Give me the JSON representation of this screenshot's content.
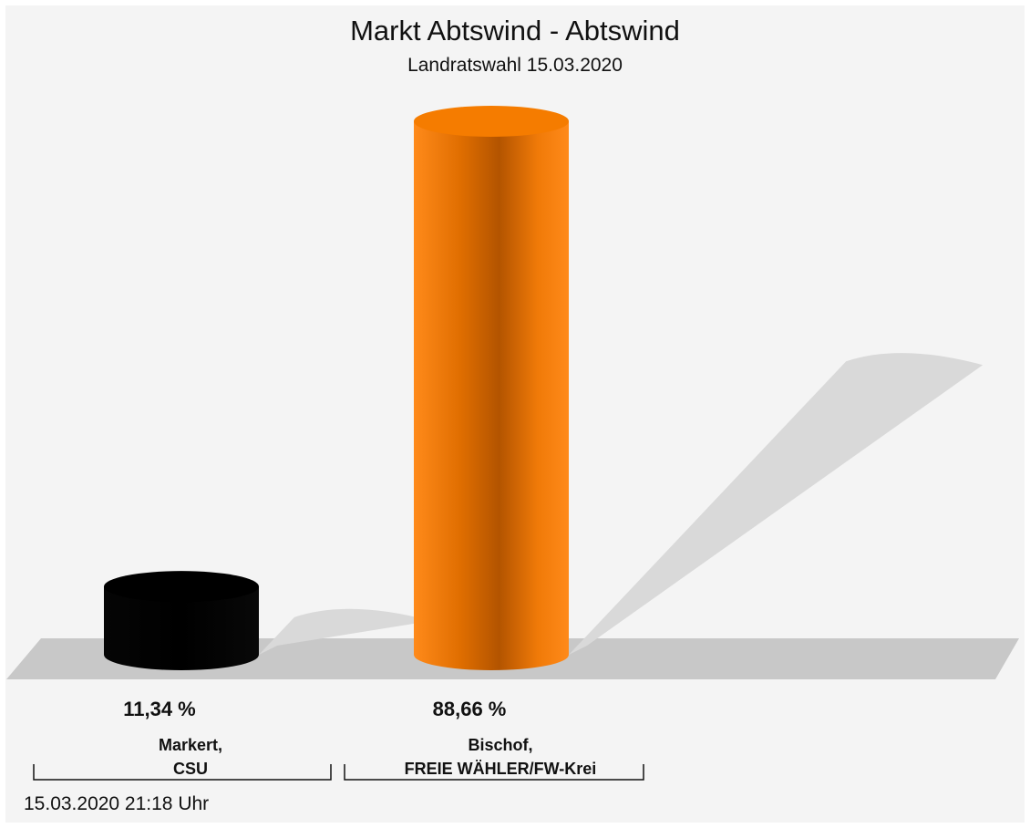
{
  "chart_data": {
    "type": "bar",
    "title": "Markt Abtswind - Abtswind",
    "subtitle": "Landratswahl 15.03.2020",
    "categories": [
      "Markert,\nCSU",
      "Bischof,\nFREIE WÄHLER/FW-Krei"
    ],
    "category_lines": [
      [
        "Markert,",
        "CSU"
      ],
      [
        "Bischof,",
        "FREIE WÄHLER/FW-Krei"
      ]
    ],
    "values": [
      11.34,
      88.66
    ],
    "value_labels": [
      "11,34 %",
      "88,66 %"
    ],
    "colors": [
      "#000000",
      "#f57c00"
    ],
    "ylim": [
      0,
      100
    ],
    "grid": false,
    "legend": "none",
    "footer": "15.03.2020 21:18 Uhr"
  }
}
